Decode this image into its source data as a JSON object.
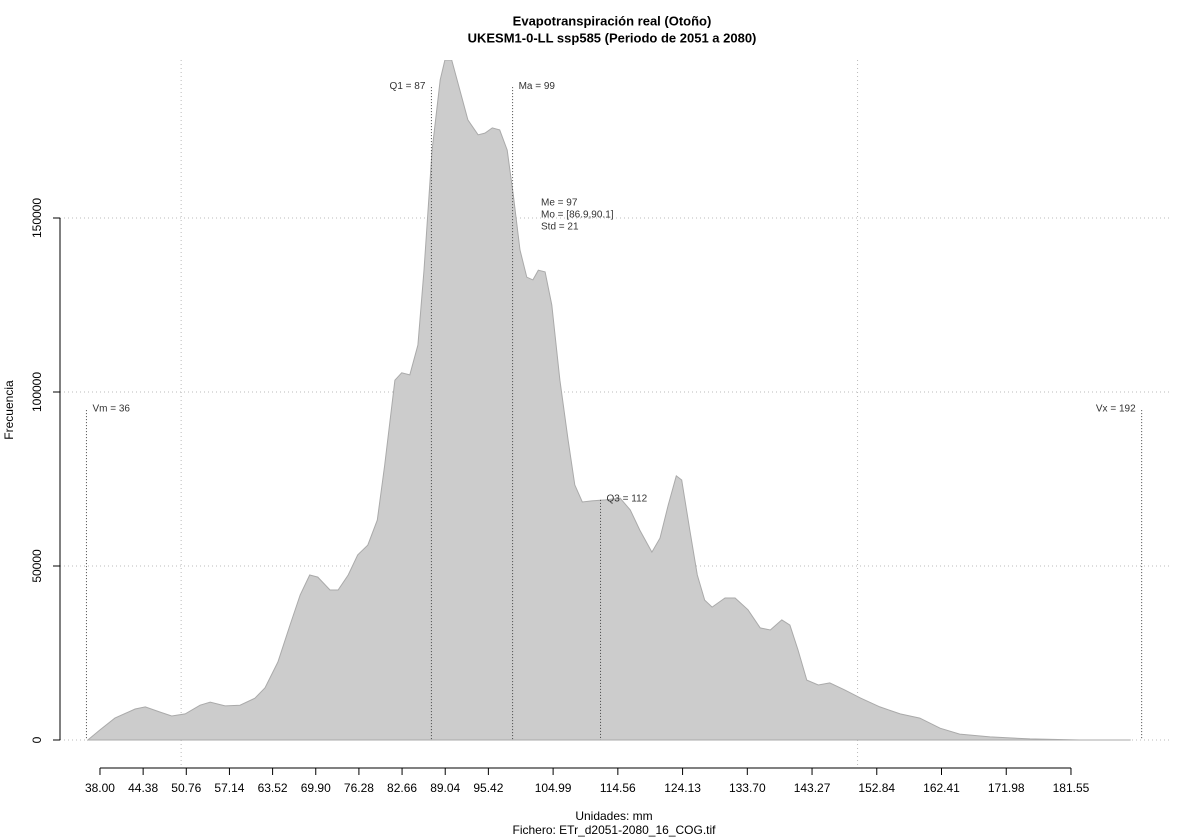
{
  "chart_data": {
    "type": "area",
    "title": "Evapotranspiración real (Otoño)",
    "subtitle": "UKESM1-0-LL ssp585 (Periodo de 2051 a 2080)",
    "xlabel": "Unidades: mm",
    "caption": "Fichero: ETr_d2051-2080_16_COG.tif",
    "ylabel": "Frecuencia",
    "color": "#cccccc",
    "x": [
      36.2,
      38,
      40.2,
      43.2,
      44.7,
      46.9,
      48.6,
      50.6,
      52.8,
      54.3,
      56.5,
      58.7,
      60.9,
      62.4,
      64.3,
      66.1,
      67.6,
      69.0,
      70.2,
      72.0,
      73.2,
      74.7,
      76.1,
      77.6,
      79.0,
      80.1,
      81.6,
      82.6,
      83.8,
      85.0,
      85.9,
      87.1,
      88.3,
      89.0,
      90.0,
      91.2,
      92.4,
      93.9,
      94.9,
      96.0,
      97.1,
      98.2,
      99.1,
      100.1,
      101.1,
      102.0,
      102.8,
      103.8,
      104.8,
      106.0,
      107.2,
      108.2,
      109.3,
      110.7,
      112.7,
      114.9,
      116.4,
      117.8,
      119.6,
      120.8,
      122.0,
      123.2,
      124.0,
      125.2,
      126.3,
      127.4,
      128.5,
      130.4,
      131.9,
      133.8,
      135.6,
      137.1,
      138.8,
      140.0,
      141.2,
      142.5,
      144.2,
      145.9,
      148.1,
      150.4,
      153.3,
      156.3,
      159.2,
      162.2,
      165.1,
      169.6,
      175.5,
      182.9,
      190.3
    ],
    "values": [
      0,
      2900,
      6300,
      8900,
      9500,
      8000,
      6900,
      7500,
      10000,
      10900,
      9800,
      10000,
      12000,
      15000,
      22400,
      33000,
      41700,
      47400,
      46800,
      43100,
      43100,
      47400,
      53200,
      56000,
      63200,
      79000,
      103400,
      105500,
      104900,
      113500,
      135000,
      169500,
      189700,
      195400,
      195400,
      186800,
      178200,
      173900,
      174400,
      175900,
      175300,
      169500,
      156600,
      140800,
      133000,
      132200,
      135000,
      134500,
      125000,
      103400,
      86200,
      73300,
      68400,
      68700,
      69000,
      69500,
      66100,
      60300,
      54000,
      58000,
      67500,
      75900,
      74700,
      60300,
      47400,
      40200,
      38200,
      40800,
      40800,
      37400,
      32200,
      31600,
      34500,
      33000,
      25900,
      17200,
      15800,
      16400,
      14400,
      12100,
      9500,
      7500,
      6300,
      3400,
      1700,
      900,
      300,
      0,
      0
    ],
    "xlim": [
      32.09,
      196.19
    ],
    "ylim": [
      -8050,
      195400
    ],
    "xticks": [
      {
        "value": 38,
        "label": "38.00"
      },
      {
        "value": 44.38,
        "label": "44.38"
      },
      {
        "value": 50.76,
        "label": "50.76"
      },
      {
        "value": 57.14,
        "label": "57.14"
      },
      {
        "value": 63.52,
        "label": "63.52"
      },
      {
        "value": 69.9,
        "label": "69.90"
      },
      {
        "value": 76.28,
        "label": "76.28"
      },
      {
        "value": 82.66,
        "label": "82.66"
      },
      {
        "value": 89.04,
        "label": "89.04"
      },
      {
        "value": 95.42,
        "label": "95.42"
      },
      {
        "value": 104.99,
        "label": "104.99"
      },
      {
        "value": 114.56,
        "label": "114.56"
      },
      {
        "value": 124.13,
        "label": "124.13"
      },
      {
        "value": 133.7,
        "label": "133.70"
      },
      {
        "value": 143.27,
        "label": "143.27"
      },
      {
        "value": 152.84,
        "label": "152.84"
      },
      {
        "value": 162.41,
        "label": "162.41"
      },
      {
        "value": 171.98,
        "label": "171.98"
      },
      {
        "value": 181.55,
        "label": "181.55"
      }
    ],
    "yticks": [
      0,
      50000,
      100000,
      150000
    ],
    "xgrid": [
      50,
      150
    ],
    "grid": true,
    "annotations": [
      {
        "label": "Vm = 36",
        "x": 36,
        "y": 94800,
        "side": "right"
      },
      {
        "label": "Q1 = 87",
        "x": 87,
        "y": 187600,
        "side": "left"
      },
      {
        "label": "Ma = 99",
        "x": 99,
        "y": 187600,
        "side": "right"
      },
      {
        "label": "Q3 = 112",
        "x": 112,
        "y": 69000,
        "side": "right"
      },
      {
        "label": "Vx = 192",
        "x": 192,
        "y": 94800,
        "side": "left"
      }
    ],
    "stats": [
      "Me = 97",
      "Mo = [86.9,90.1]",
      "Std = 21"
    ]
  }
}
